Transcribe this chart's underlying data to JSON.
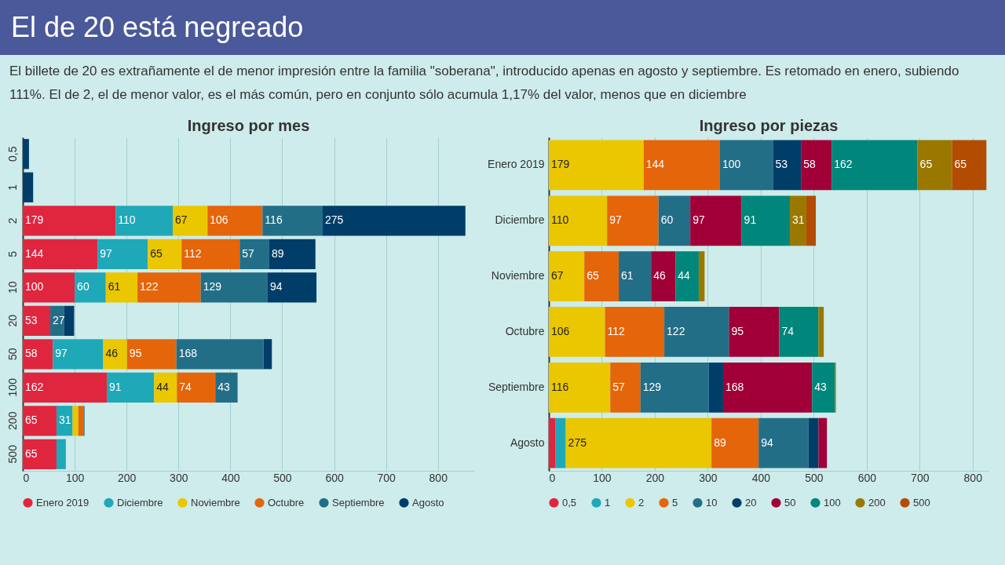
{
  "chart_data": [
    {
      "type": "bar",
      "orientation": "horizontal",
      "stacked": true,
      "title": "Ingreso por mes",
      "annotations": [
        "El de 20 está negreado",
        "El billete de 20 es extrañamente el de menor impresión entre la familia \"soberana\", introducido apenas en agosto y septiembre. Es retomado en enero, subiendo 111%. El de 2, el de menor valor, es el más común, pero en conjunto sólo acumula 1,17% del valor, menos que en diciembre"
      ],
      "categories": [
        "0,5",
        "1",
        "2",
        "5",
        "10",
        "20",
        "50",
        "100",
        "200",
        "500"
      ],
      "xlim": [
        0,
        870
      ],
      "xticks": [
        0,
        100,
        200,
        300,
        400,
        500,
        600,
        700,
        800
      ],
      "grid": "x",
      "legend": "bottom",
      "series": [
        {
          "name": "Enero 2019",
          "color": "#e0263f",
          "values": [
            null,
            null,
            179,
            144,
            100,
            53,
            58,
            162,
            65,
            65
          ],
          "value_labels": [
            null,
            null,
            "179",
            "144",
            "100",
            "53",
            "58",
            "162",
            "65",
            "65"
          ]
        },
        {
          "name": "Diciembre",
          "color": "#1fa8b8",
          "values": [
            null,
            null,
            110,
            97,
            60,
            null,
            97,
            91,
            31,
            18
          ],
          "value_labels": [
            null,
            null,
            "110",
            "97",
            "60",
            null,
            "97",
            "91",
            "31",
            null
          ]
        },
        {
          "name": "Noviembre",
          "color": "#eac700",
          "values": [
            null,
            null,
            67,
            65,
            61,
            null,
            46,
            44,
            11,
            null
          ],
          "value_labels": [
            null,
            null,
            "67",
            "65",
            "61",
            null,
            "46",
            "44",
            null,
            null
          ]
        },
        {
          "name": "Octubre",
          "color": "#e5650a",
          "values": [
            null,
            null,
            106,
            112,
            122,
            null,
            95,
            74,
            10,
            null
          ],
          "value_labels": [
            null,
            null,
            "106",
            "112",
            "122",
            null,
            "95",
            "74",
            null,
            null
          ]
        },
        {
          "name": "Septiembre",
          "color": "#236e87",
          "values": [
            null,
            null,
            116,
            57,
            129,
            27,
            168,
            43,
            2,
            null
          ],
          "value_labels": [
            null,
            null,
            "116",
            "57",
            "129",
            "27",
            "168",
            "43",
            null,
            null
          ]
        },
        {
          "name": "Agosto",
          "color": "#003e69",
          "values": [
            12,
            20,
            275,
            89,
            94,
            19,
            16,
            null,
            null,
            null
          ],
          "value_labels": [
            null,
            null,
            "275",
            "89",
            "94",
            null,
            null,
            null,
            null,
            null
          ]
        }
      ]
    },
    {
      "type": "bar",
      "orientation": "horizontal",
      "stacked": true,
      "title": "Ingreso por piezas",
      "categories": [
        "Enero 2019",
        "Diciembre",
        "Noviembre",
        "Octubre",
        "Septiembre",
        "Agosto"
      ],
      "xlim": [
        0,
        830
      ],
      "xticks": [
        0,
        100,
        200,
        300,
        400,
        500,
        600,
        700,
        800
      ],
      "grid": "x",
      "legend": "bottom",
      "series": [
        {
          "name": "0,5",
          "color": "#e0263f",
          "values": [
            null,
            null,
            null,
            null,
            null,
            12
          ],
          "value_labels": [
            null,
            null,
            null,
            null,
            null,
            null
          ]
        },
        {
          "name": "1",
          "color": "#1fa8b8",
          "values": [
            null,
            null,
            null,
            null,
            null,
            20
          ],
          "value_labels": [
            null,
            null,
            null,
            null,
            null,
            null
          ]
        },
        {
          "name": "2",
          "color": "#eac700",
          "values": [
            179,
            110,
            67,
            106,
            116,
            275
          ],
          "value_labels": [
            "179",
            "110",
            "67",
            "106",
            "116",
            "275"
          ]
        },
        {
          "name": "5",
          "color": "#e5650a",
          "values": [
            144,
            97,
            65,
            112,
            57,
            89
          ],
          "value_labels": [
            "144",
            "97",
            "65",
            "112",
            "57",
            "89"
          ]
        },
        {
          "name": "10",
          "color": "#236e87",
          "values": [
            100,
            60,
            61,
            122,
            129,
            94
          ],
          "value_labels": [
            "100",
            "60",
            "61",
            "122",
            "129",
            "94"
          ]
        },
        {
          "name": "20",
          "color": "#003e69",
          "values": [
            53,
            null,
            null,
            null,
            27,
            19
          ],
          "value_labels": [
            "53",
            null,
            null,
            null,
            null,
            null
          ]
        },
        {
          "name": "50",
          "color": "#a00037",
          "values": [
            58,
            97,
            46,
            95,
            168,
            16
          ],
          "value_labels": [
            "58",
            "97",
            "46",
            "95",
            "168",
            null
          ]
        },
        {
          "name": "100",
          "color": "#00867a",
          "values": [
            162,
            91,
            44,
            74,
            43,
            null
          ],
          "value_labels": [
            "162",
            "91",
            "44",
            "74",
            "43",
            null
          ]
        },
        {
          "name": "200",
          "color": "#9a7800",
          "values": [
            65,
            31,
            11,
            10,
            2,
            null
          ],
          "value_labels": [
            "65",
            "31",
            null,
            null,
            null,
            null
          ]
        },
        {
          "name": "500",
          "color": "#b34c00",
          "values": [
            65,
            18,
            null,
            null,
            null,
            null
          ],
          "value_labels": [
            "65",
            null,
            null,
            null,
            null,
            null
          ]
        }
      ]
    }
  ]
}
